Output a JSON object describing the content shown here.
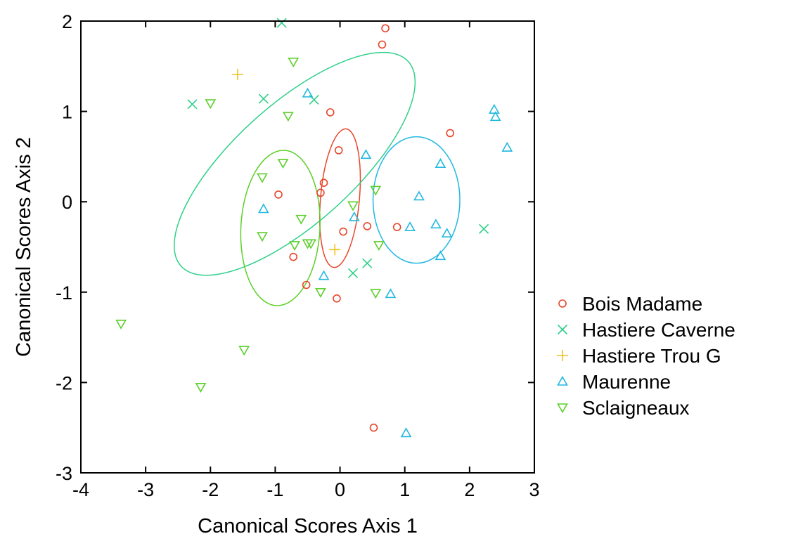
{
  "chart_data": {
    "type": "scatter",
    "title": "",
    "xlabel": "Canonical Scores Axis 1",
    "ylabel": "Canonical Scores Axis 2",
    "xlim": [
      -4,
      3
    ],
    "ylim": [
      -3,
      2
    ],
    "xticks": [
      "-4",
      "-3",
      "-2",
      "-1",
      "0",
      "1",
      "2",
      "3"
    ],
    "yticks": [
      "-3",
      "-2",
      "-1",
      "0",
      "1",
      "2"
    ],
    "grid": false,
    "legend_position": "right",
    "series": [
      {
        "name": "Bois Madame",
        "marker": "circle",
        "color": "#e8452a",
        "points": [
          [
            0.7,
            1.92
          ],
          [
            0.65,
            1.74
          ],
          [
            -0.15,
            0.99
          ],
          [
            1.7,
            0.76
          ],
          [
            -0.02,
            0.57
          ],
          [
            -0.95,
            0.08
          ],
          [
            -0.25,
            0.21
          ],
          [
            -0.3,
            0.1
          ],
          [
            0.05,
            -0.33
          ],
          [
            0.42,
            -0.27
          ],
          [
            0.88,
            -0.28
          ],
          [
            -0.72,
            -0.61
          ],
          [
            -0.52,
            -0.92
          ],
          [
            -0.05,
            -1.07
          ],
          [
            0.52,
            -2.5
          ]
        ],
        "ellipse": {
          "cx": 0.0,
          "cy": 0.04,
          "rx": 0.3,
          "ry": 0.77,
          "angle": 5
        }
      },
      {
        "name": "Hastiere Caverne",
        "marker": "x",
        "color": "#2fd08a",
        "points": [
          [
            -0.9,
            1.98
          ],
          [
            -2.28,
            1.08
          ],
          [
            -1.18,
            1.14
          ],
          [
            -0.4,
            1.13
          ],
          [
            2.22,
            -0.3
          ],
          [
            0.2,
            -0.79
          ],
          [
            0.42,
            -0.68
          ]
        ],
        "ellipse": {
          "cx": -0.7,
          "cy": 0.42,
          "rx": 2.36,
          "ry": 0.66,
          "angle": -42
        }
      },
      {
        "name": "Hastiere Trou G",
        "marker": "plus",
        "color": "#f0c020",
        "points": [
          [
            -1.58,
            1.41
          ],
          [
            -0.08,
            -0.53
          ]
        ],
        "ellipse": null
      },
      {
        "name": "Maurenne",
        "marker": "triangle-up",
        "color": "#22b8e0",
        "points": [
          [
            -0.5,
            1.2
          ],
          [
            2.38,
            1.02
          ],
          [
            2.4,
            0.94
          ],
          [
            2.58,
            0.6
          ],
          [
            0.4,
            0.52
          ],
          [
            1.55,
            0.42
          ],
          [
            1.22,
            0.06
          ],
          [
            -1.18,
            -0.08
          ],
          [
            0.22,
            -0.17
          ],
          [
            1.08,
            -0.28
          ],
          [
            1.48,
            -0.25
          ],
          [
            1.65,
            -0.35
          ],
          [
            1.55,
            -0.6
          ],
          [
            -0.25,
            -0.82
          ],
          [
            0.78,
            -1.02
          ],
          [
            1.02,
            -2.56
          ]
        ],
        "ellipse": {
          "cx": 1.18,
          "cy": 0.02,
          "rx": 0.67,
          "ry": 0.7,
          "angle": 0
        }
      },
      {
        "name": "Sclaigneaux",
        "marker": "triangle-down",
        "color": "#5ccf2a",
        "points": [
          [
            -0.72,
            1.55
          ],
          [
            -2.0,
            1.09
          ],
          [
            -0.8,
            0.95
          ],
          [
            -0.88,
            0.43
          ],
          [
            -1.2,
            0.27
          ],
          [
            0.55,
            0.13
          ],
          [
            0.2,
            -0.04
          ],
          [
            -0.6,
            -0.19
          ],
          [
            -1.2,
            -0.38
          ],
          [
            -0.7,
            -0.48
          ],
          [
            -0.5,
            -0.46
          ],
          [
            -0.45,
            -0.46
          ],
          [
            0.6,
            -0.48
          ],
          [
            -0.3,
            -1.0
          ],
          [
            0.55,
            -1.01
          ],
          [
            -3.38,
            -1.35
          ],
          [
            -1.48,
            -1.64
          ],
          [
            -2.15,
            -2.05
          ]
        ],
        "ellipse": {
          "cx": -0.92,
          "cy": -0.29,
          "rx": 0.61,
          "ry": 0.86,
          "angle": 3
        }
      }
    ]
  }
}
